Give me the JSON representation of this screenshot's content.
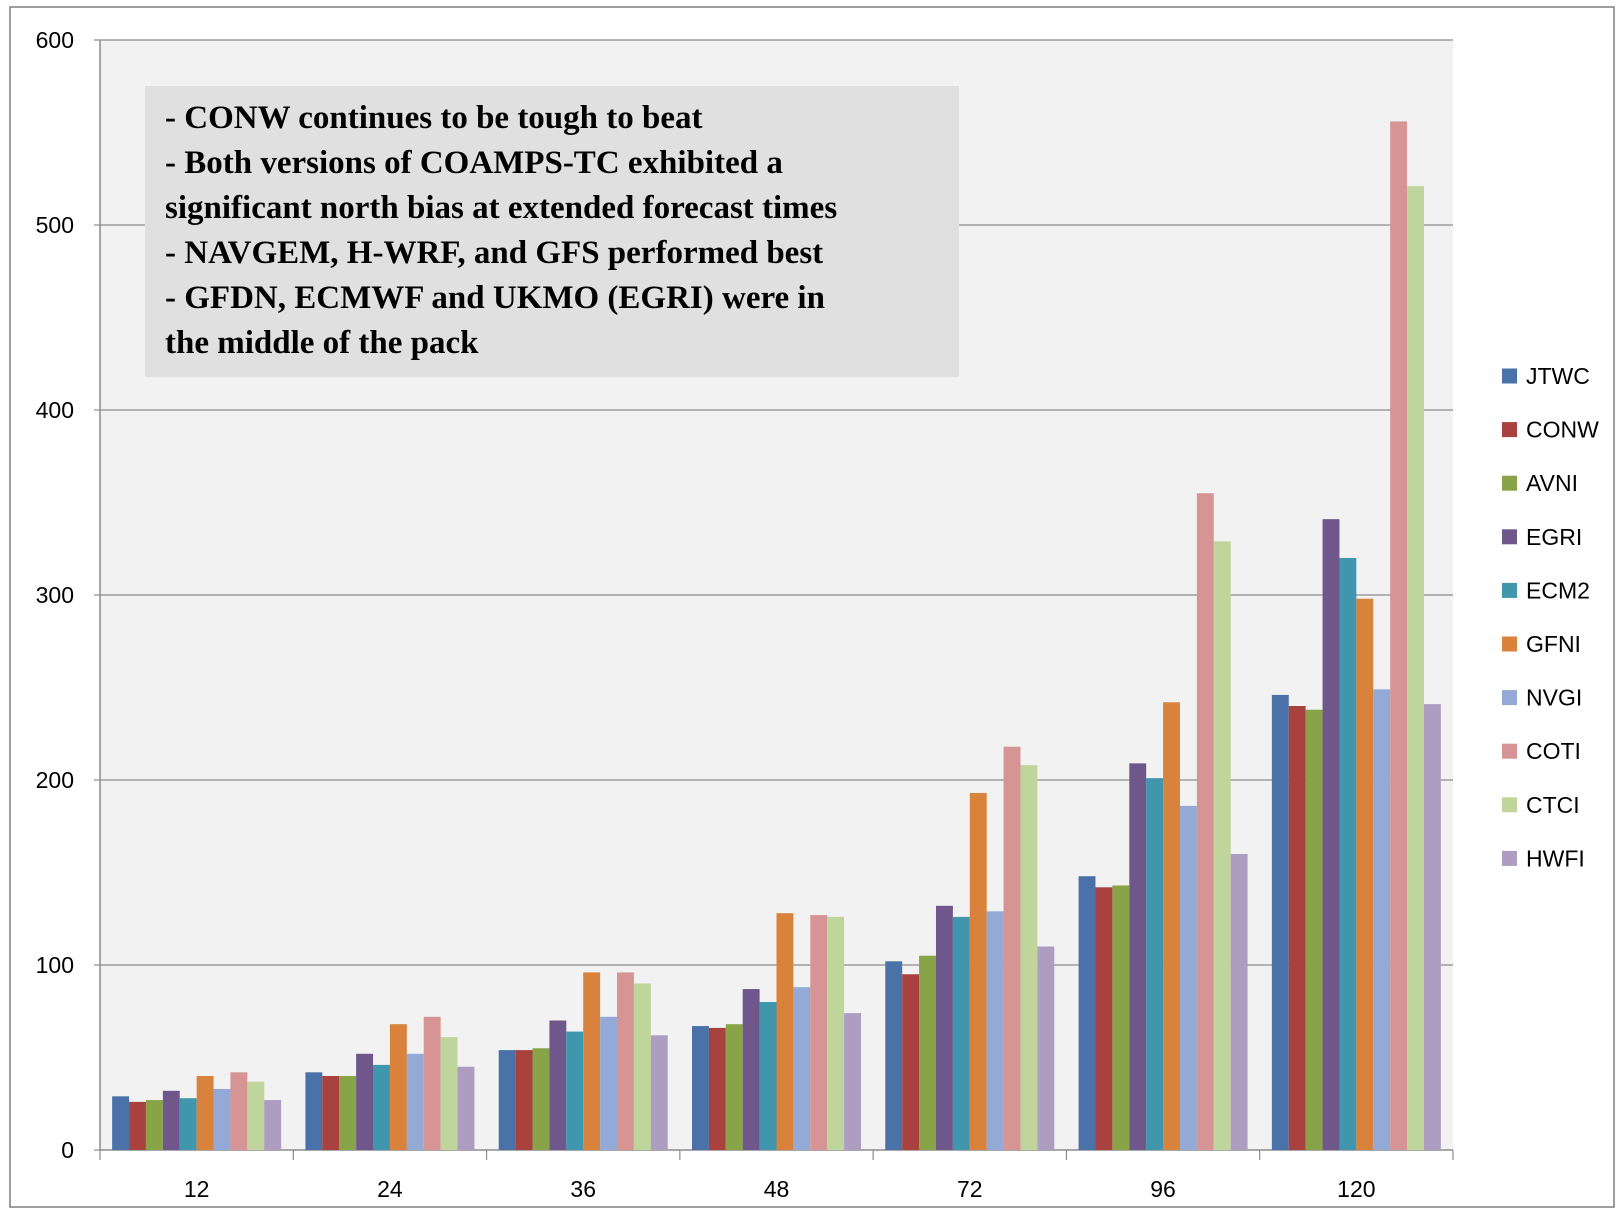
{
  "chart_data": {
    "type": "bar",
    "title": "",
    "xlabel": "",
    "ylabel": "",
    "ylim": [
      0,
      600
    ],
    "yticks": [
      0,
      100,
      200,
      300,
      400,
      500,
      600
    ],
    "grid": true,
    "legend_position": "right",
    "categories": [
      "12",
      "24",
      "36",
      "48",
      "72",
      "96",
      "120"
    ],
    "series": [
      {
        "name": "JTWC",
        "color": "#4a72a8",
        "values": [
          29,
          42,
          54,
          67,
          102,
          148,
          246
        ]
      },
      {
        "name": "CONW",
        "color": "#a9413f",
        "values": [
          26,
          40,
          54,
          66,
          95,
          142,
          240
        ]
      },
      {
        "name": "AVNI",
        "color": "#89a349",
        "values": [
          27,
          40,
          55,
          68,
          105,
          143,
          238
        ]
      },
      {
        "name": "EGRI",
        "color": "#6f578b",
        "values": [
          32,
          52,
          70,
          87,
          132,
          209,
          341
        ]
      },
      {
        "name": "ECM2",
        "color": "#3f96ad",
        "values": [
          28,
          46,
          64,
          80,
          126,
          201,
          320
        ]
      },
      {
        "name": "GFNI",
        "color": "#d9823b",
        "values": [
          40,
          68,
          96,
          128,
          193,
          242,
          298
        ]
      },
      {
        "name": "NVGI",
        "color": "#94a9d5",
        "values": [
          33,
          52,
          72,
          88,
          129,
          186,
          249
        ]
      },
      {
        "name": "COTI",
        "color": "#d69594",
        "values": [
          42,
          72,
          96,
          127,
          218,
          355,
          556
        ]
      },
      {
        "name": "CTCI",
        "color": "#bfd59b",
        "values": [
          37,
          61,
          90,
          126,
          208,
          329,
          521
        ]
      },
      {
        "name": "HWFI",
        "color": "#ac9dc1",
        "values": [
          27,
          45,
          62,
          74,
          110,
          160,
          241
        ]
      }
    ],
    "annotations": [
      "- CONW continues to be tough to beat",
      "- Both versions of COAMPS-TC exhibited a",
      "significant north bias at extended forecast times",
      "- NAVGEM, H-WRF, and GFS performed best",
      "- GFDN, ECMWF and UKMO (EGRI) were in",
      "the middle of the pack"
    ]
  },
  "colors": {
    "plot_background": "#f2f2f2",
    "gridline": "#8c8c8c",
    "axis": "#8c8c8c",
    "annotation_background": "#e0e0e0"
  }
}
